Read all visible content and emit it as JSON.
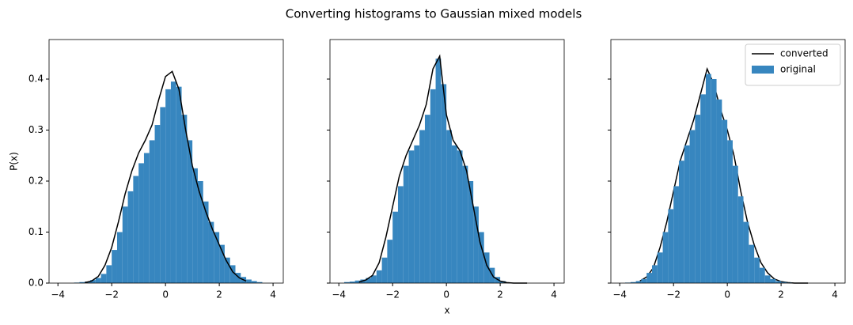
{
  "title": "Converting histograms to Gaussian mixed models",
  "chart_data": [
    {
      "type": "histogram",
      "ylabel": "P(x)",
      "xlim": [
        -4.33,
        4.38
      ],
      "ylim": [
        0,
        0.4775
      ],
      "xticks": [
        {
          "value": -4,
          "label": "−4"
        },
        {
          "value": -2,
          "label": "−2"
        },
        0,
        2,
        4
      ],
      "yticks": [
        {
          "value": 0,
          "label": "0.0"
        },
        0.1,
        0.2,
        0.3,
        0.4
      ],
      "show_ytick_labels": true,
      "series": [
        {
          "type": "histogram",
          "color": "#3786bf",
          "bins": [
            -3.4,
            -3.2,
            -3.0,
            -2.8,
            -2.6,
            -2.4,
            -2.2,
            -2.0,
            -1.8,
            -1.6,
            -1.4,
            -1.2,
            -1.0,
            -0.8,
            -0.6,
            -0.4,
            -0.2,
            0,
            0.2,
            0.4,
            0.6,
            0.8,
            1.0,
            1.2,
            1.4,
            1.6,
            1.8,
            2.0,
            2.2,
            2.4,
            2.6,
            2.8,
            3.0,
            3.2,
            3.4,
            3.6
          ],
          "values": [
            0.001,
            0.002,
            0.003,
            0.006,
            0.01,
            0.018,
            0.035,
            0.065,
            0.1,
            0.15,
            0.18,
            0.21,
            0.235,
            0.255,
            0.28,
            0.31,
            0.345,
            0.38,
            0.395,
            0.385,
            0.33,
            0.28,
            0.225,
            0.2,
            0.16,
            0.12,
            0.1,
            0.075,
            0.05,
            0.035,
            0.02,
            0.012,
            0.007,
            0.004,
            0.002
          ]
        },
        {
          "type": "line",
          "color": "#000000",
          "x": [
            -3,
            -2.75,
            -2.5,
            -2.25,
            -2,
            -1.75,
            -1.5,
            -1.25,
            -1,
            -0.75,
            -0.5,
            -0.25,
            0,
            0.25,
            0.5,
            0.75,
            1,
            1.25,
            1.5,
            1.75,
            2,
            2.25,
            2.5,
            2.75,
            3
          ],
          "values": [
            0.001,
            0.004,
            0.013,
            0.035,
            0.07,
            0.12,
            0.175,
            0.22,
            0.255,
            0.28,
            0.31,
            0.36,
            0.405,
            0.415,
            0.38,
            0.3,
            0.23,
            0.18,
            0.14,
            0.105,
            0.075,
            0.045,
            0.022,
            0.01,
            0.004
          ]
        }
      ]
    },
    {
      "type": "histogram",
      "xlabel": "x",
      "xlim": [
        -4.33,
        4.38
      ],
      "ylim": [
        0,
        0.4775
      ],
      "xticks": [
        {
          "value": -4,
          "label": "−4"
        },
        {
          "value": -2,
          "label": "−2"
        },
        0,
        2,
        4
      ],
      "yticks": [
        0,
        0.1,
        0.2,
        0.3,
        0.4
      ],
      "show_ytick_labels": false,
      "series": [
        {
          "type": "histogram",
          "color": "#3786bf",
          "bins": [
            -3.8,
            -3.6,
            -3.4,
            -3.2,
            -3.0,
            -2.8,
            -2.6,
            -2.4,
            -2.2,
            -2.0,
            -1.8,
            -1.6,
            -1.4,
            -1.2,
            -1.0,
            -0.8,
            -0.6,
            -0.4,
            -0.2,
            0,
            0.2,
            0.4,
            0.6,
            0.8,
            1.0,
            1.2,
            1.4,
            1.6,
            1.8,
            2.0,
            2.2,
            2.4
          ],
          "values": [
            0.002,
            0.003,
            0.005,
            0.007,
            0.01,
            0.015,
            0.025,
            0.05,
            0.085,
            0.14,
            0.19,
            0.23,
            0.26,
            0.27,
            0.3,
            0.33,
            0.38,
            0.44,
            0.39,
            0.3,
            0.27,
            0.26,
            0.23,
            0.2,
            0.15,
            0.1,
            0.06,
            0.03,
            0.012,
            0.004,
            0.001
          ]
        },
        {
          "type": "line",
          "color": "#000000",
          "x": [
            -3.25,
            -3,
            -2.75,
            -2.5,
            -2.25,
            -2,
            -1.75,
            -1.5,
            -1.25,
            -1,
            -0.75,
            -0.5,
            -0.25,
            0,
            0.25,
            0.5,
            0.75,
            1,
            1.25,
            1.5,
            1.75,
            2,
            2.25,
            2.5,
            2.75,
            3
          ],
          "values": [
            0.002,
            0.006,
            0.015,
            0.04,
            0.09,
            0.15,
            0.21,
            0.25,
            0.28,
            0.31,
            0.35,
            0.42,
            0.445,
            0.33,
            0.28,
            0.26,
            0.22,
            0.15,
            0.08,
            0.035,
            0.012,
            0.004,
            0.001,
            0,
            0,
            0
          ]
        }
      ]
    },
    {
      "type": "histogram",
      "legend": "upper right",
      "xlim": [
        -4.33,
        4.38
      ],
      "ylim": [
        0,
        0.4775
      ],
      "xticks": [
        {
          "value": -4,
          "label": "−4"
        },
        {
          "value": -2,
          "label": "−2"
        },
        0,
        2,
        4
      ],
      "yticks": [
        0,
        0.1,
        0.2,
        0.3,
        0.4
      ],
      "show_ytick_labels": false,
      "series": [
        {
          "type": "line",
          "name": "converted",
          "color": "#000000",
          "x": [
            -3.25,
            -3,
            -2.75,
            -2.5,
            -2.25,
            -2,
            -1.75,
            -1.5,
            -1.25,
            -1,
            -0.75,
            -0.5,
            -0.25,
            0,
            0.25,
            0.5,
            0.75,
            1,
            1.25,
            1.5,
            1.75,
            2,
            2.25,
            2.5,
            2.75,
            3
          ],
          "values": [
            0.004,
            0.012,
            0.03,
            0.07,
            0.12,
            0.18,
            0.24,
            0.28,
            0.32,
            0.37,
            0.42,
            0.39,
            0.34,
            0.3,
            0.25,
            0.18,
            0.12,
            0.075,
            0.04,
            0.02,
            0.008,
            0.003,
            0.001,
            0,
            0,
            0
          ]
        },
        {
          "type": "histogram",
          "name": "original",
          "color": "#3786bf",
          "bins": [
            -3.8,
            -3.6,
            -3.4,
            -3.2,
            -3.0,
            -2.8,
            -2.6,
            -2.4,
            -2.2,
            -2.0,
            -1.8,
            -1.6,
            -1.4,
            -1.2,
            -1.0,
            -0.8,
            -0.6,
            -0.4,
            -0.2,
            0,
            0.2,
            0.4,
            0.6,
            0.8,
            1.0,
            1.2,
            1.4,
            1.6,
            1.8,
            2.0,
            2.2,
            2.4
          ],
          "values": [
            0.001,
            0.002,
            0.004,
            0.008,
            0.02,
            0.035,
            0.06,
            0.1,
            0.145,
            0.19,
            0.24,
            0.27,
            0.3,
            0.33,
            0.37,
            0.41,
            0.4,
            0.36,
            0.32,
            0.28,
            0.23,
            0.17,
            0.12,
            0.075,
            0.05,
            0.03,
            0.015,
            0.008,
            0.004,
            0.002,
            0.001
          ]
        }
      ]
    }
  ]
}
